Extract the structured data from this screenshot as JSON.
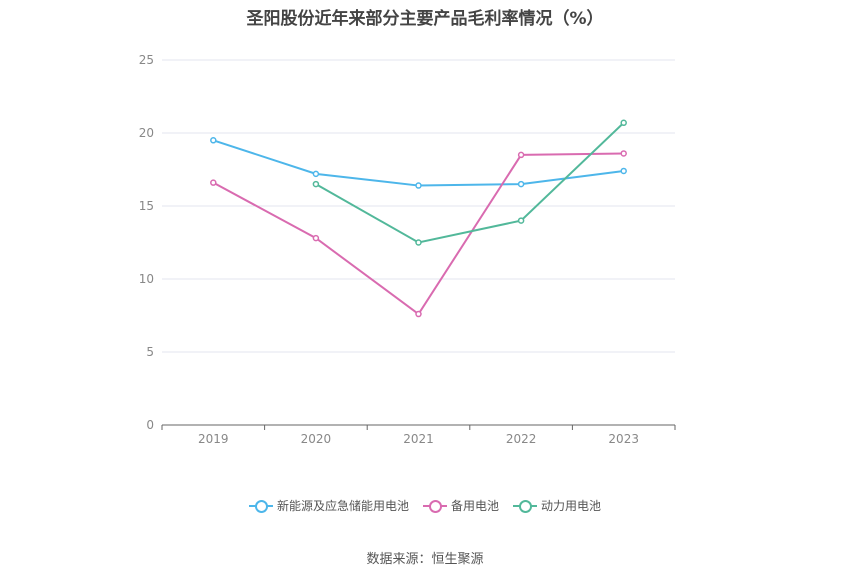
{
  "chart_data": {
    "type": "line",
    "title": "圣阳股份近年来部分主要产品毛利率情况（%）",
    "categories": [
      "2019",
      "2020",
      "2021",
      "2022",
      "2023"
    ],
    "ylim": [
      0,
      25
    ],
    "yticks": [
      0,
      5,
      10,
      15,
      20,
      25
    ],
    "grid": true,
    "legend_position": "bottom",
    "series": [
      {
        "name": "新能源及应急储能用电池",
        "color": "#4db6ea",
        "values": [
          19.5,
          17.2,
          16.4,
          16.5,
          17.4
        ]
      },
      {
        "name": "备用电池",
        "color": "#d96bb0",
        "values": [
          16.6,
          12.8,
          7.6,
          18.5,
          18.6
        ]
      },
      {
        "name": "动力用电池",
        "color": "#52b89a",
        "values": [
          null,
          16.5,
          12.5,
          14.0,
          20.7
        ]
      }
    ]
  },
  "footer": {
    "source": "数据来源：恒生聚源"
  }
}
